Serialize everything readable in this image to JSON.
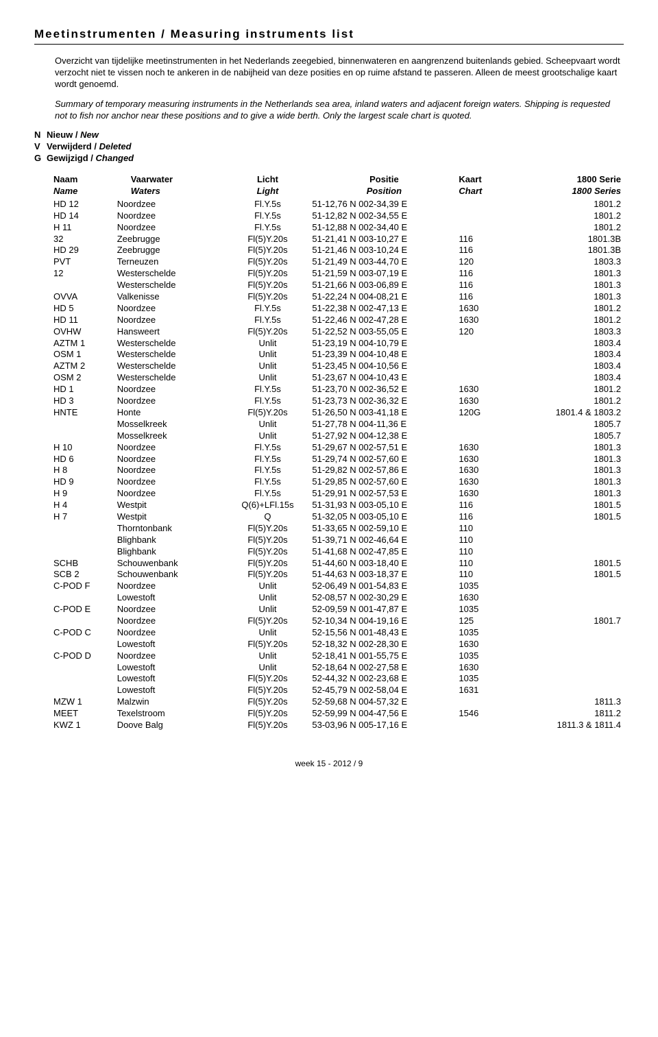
{
  "title": "Meetinstrumenten / Measuring instruments list",
  "intro_nl": "Overzicht van tijdelijke meetinstrumenten in het Nederlands zeegebied, binnenwateren en aangrenzend buitenlands gebied. Scheepvaart wordt verzocht niet te vissen noch te ankeren in de nabijheid van deze posities en op ruime afstand te passeren. Alleen de meest grootschalige kaart wordt genoemd.",
  "intro_en": "Summary of temporary measuring instruments in the Netherlands sea area, inland waters and adjacent foreign waters. Shipping is requested not to fish nor anchor near these positions and to give a wide berth. Only the largest scale chart is quoted.",
  "legend": [
    {
      "code": "N",
      "nl": "Nieuw / ",
      "en": "New"
    },
    {
      "code": "V",
      "nl": "Verwijderd / ",
      "en": "Deleted"
    },
    {
      "code": "G",
      "nl": "Gewijzigd / ",
      "en": "Changed"
    }
  ],
  "headers": {
    "naam": "Naam",
    "naam_en": "Name",
    "vaar": "Vaarwater",
    "vaar_en": "Waters",
    "licht": "Licht",
    "licht_en": "Light",
    "pos": "Positie",
    "pos_en": "Position",
    "kaart": "Kaart",
    "kaart_en": "Chart",
    "serie": "1800 Serie",
    "serie_en": "1800 Series"
  },
  "rows": [
    {
      "naam": "HD 12",
      "vaar": "Noordzee",
      "licht": "Fl.Y.5s",
      "pos": "51-12,76 N   002-34,39 E",
      "kaart": "",
      "serie": "1801.2"
    },
    {
      "naam": "HD 14",
      "vaar": "Noordzee",
      "licht": "Fl.Y.5s",
      "pos": "51-12,82 N   002-34,55 E",
      "kaart": "",
      "serie": "1801.2"
    },
    {
      "naam": "H 11",
      "vaar": "Noordzee",
      "licht": "Fl.Y.5s",
      "pos": "51-12,88 N   002-34,40 E",
      "kaart": "",
      "serie": "1801.2"
    },
    {
      "naam": "32",
      "vaar": "Zeebrugge",
      "licht": "Fl(5)Y.20s",
      "pos": "51-21,41 N   003-10,27 E",
      "kaart": "116",
      "serie": "1801.3B"
    },
    {
      "naam": "HD 29",
      "vaar": "Zeebrugge",
      "licht": "Fl(5)Y.20s",
      "pos": "51-21,46 N   003-10,24 E",
      "kaart": "116",
      "serie": "1801.3B"
    },
    {
      "naam": "PVT",
      "vaar": "Terneuzen",
      "licht": "Fl(5)Y.20s",
      "pos": "51-21,49 N   003-44,70 E",
      "kaart": "120",
      "serie": "1803.3"
    },
    {
      "naam": "12",
      "vaar": "Westerschelde",
      "licht": "Fl(5)Y.20s",
      "pos": "51-21,59 N   003-07,19 E",
      "kaart": "116",
      "serie": "1801.3"
    },
    {
      "naam": "",
      "vaar": "Westerschelde",
      "licht": "Fl(5)Y.20s",
      "pos": "51-21,66 N   003-06,89 E",
      "kaart": "116",
      "serie": "1801.3"
    },
    {
      "naam": "OVVA",
      "vaar": "Valkenisse",
      "licht": "Fl(5)Y.20s",
      "pos": "51-22,24 N   004-08,21 E",
      "kaart": "116",
      "serie": "1801.3"
    },
    {
      "naam": "HD 5",
      "vaar": "Noordzee",
      "licht": "Fl.Y.5s",
      "pos": "51-22,38 N   002-47,13 E",
      "kaart": "1630",
      "serie": "1801.2"
    },
    {
      "naam": "HD 11",
      "vaar": "Noordzee",
      "licht": "Fl.Y.5s",
      "pos": "51-22,46 N   002-47,28 E",
      "kaart": "1630",
      "serie": "1801.2"
    },
    {
      "naam": "OVHW",
      "vaar": "Hansweert",
      "licht": "Fl(5)Y.20s",
      "pos": "51-22,52 N   003-55,05 E",
      "kaart": "120",
      "serie": "1803.3"
    },
    {
      "naam": "AZTM 1",
      "vaar": "Westerschelde",
      "licht": "Unlit",
      "pos": "51-23,19 N   004-10,79 E",
      "kaart": "",
      "serie": "1803.4"
    },
    {
      "naam": "OSM 1",
      "vaar": "Westerschelde",
      "licht": "Unlit",
      "pos": "51-23,39 N   004-10,48 E",
      "kaart": "",
      "serie": "1803.4"
    },
    {
      "naam": "AZTM 2",
      "vaar": "Westerschelde",
      "licht": "Unlit",
      "pos": "51-23,45 N   004-10,56 E",
      "kaart": "",
      "serie": "1803.4"
    },
    {
      "naam": "OSM 2",
      "vaar": "Westerschelde",
      "licht": "Unlit",
      "pos": "51-23,67 N   004-10,43 E",
      "kaart": "",
      "serie": "1803.4"
    },
    {
      "naam": "HD 1",
      "vaar": "Noordzee",
      "licht": "Fl.Y.5s",
      "pos": "51-23,70 N   002-36,52 E",
      "kaart": "1630",
      "serie": "1801.2"
    },
    {
      "naam": "HD 3",
      "vaar": "Noordzee",
      "licht": "Fl.Y.5s",
      "pos": "51-23,73 N   002-36,32 E",
      "kaart": "1630",
      "serie": "1801.2"
    },
    {
      "naam": "HNTE",
      "vaar": "Honte",
      "licht": "Fl(5)Y.20s",
      "pos": "51-26,50 N   003-41,18 E",
      "kaart": "120G",
      "serie": "1801.4 & 1803.2"
    },
    {
      "naam": "",
      "vaar": "Mosselkreek",
      "licht": "Unlit",
      "pos": "51-27,78 N   004-11,36 E",
      "kaart": "",
      "serie": "1805.7"
    },
    {
      "naam": "",
      "vaar": "Mosselkreek",
      "licht": "Unlit",
      "pos": "51-27,92 N   004-12,38 E",
      "kaart": "",
      "serie": "1805.7"
    },
    {
      "naam": "H 10",
      "vaar": "Noordzee",
      "licht": "Fl.Y.5s",
      "pos": "51-29,67 N   002-57,51 E",
      "kaart": "1630",
      "serie": "1801.3"
    },
    {
      "naam": "HD 6",
      "vaar": "Noordzee",
      "licht": "Fl.Y.5s",
      "pos": "51-29,74 N   002-57,60 E",
      "kaart": "1630",
      "serie": "1801.3"
    },
    {
      "naam": "H 8",
      "vaar": "Noordzee",
      "licht": "Fl.Y.5s",
      "pos": "51-29,82 N   002-57,86 E",
      "kaart": "1630",
      "serie": "1801.3"
    },
    {
      "naam": "HD 9",
      "vaar": "Noordzee",
      "licht": "Fl.Y.5s",
      "pos": "51-29,85 N   002-57,60 E",
      "kaart": "1630",
      "serie": "1801.3"
    },
    {
      "naam": "H 9",
      "vaar": "Noordzee",
      "licht": "Fl.Y.5s",
      "pos": "51-29,91 N   002-57,53 E",
      "kaart": "1630",
      "serie": "1801.3"
    },
    {
      "naam": "H 4",
      "vaar": "Westpit",
      "licht": "Q(6)+LFl.15s",
      "pos": "51-31,93 N   003-05,10 E",
      "kaart": "116",
      "serie": "1801.5"
    },
    {
      "naam": "H 7",
      "vaar": "Westpit",
      "licht": "Q",
      "pos": "51-32,05 N   003-05,10 E",
      "kaart": "116",
      "serie": "1801.5"
    },
    {
      "naam": "",
      "vaar": "Thorntonbank",
      "licht": "Fl(5)Y.20s",
      "pos": "51-33,65 N   002-59,10 E",
      "kaart": "110",
      "serie": ""
    },
    {
      "naam": "",
      "vaar": "Blighbank",
      "licht": "Fl(5)Y.20s",
      "pos": "51-39,71 N   002-46,64 E",
      "kaart": "110",
      "serie": ""
    },
    {
      "naam": "",
      "vaar": "Blighbank",
      "licht": "Fl(5)Y.20s",
      "pos": "51-41,68 N   002-47,85 E",
      "kaart": "110",
      "serie": ""
    },
    {
      "naam": "SCHB",
      "vaar": "Schouwenbank",
      "licht": "Fl(5)Y.20s",
      "pos": "51-44,60 N   003-18,40 E",
      "kaart": "110",
      "serie": "1801.5"
    },
    {
      "naam": "SCB 2",
      "vaar": "Schouwenbank",
      "licht": "Fl(5)Y.20s",
      "pos": "51-44,63 N   003-18,37 E",
      "kaart": "110",
      "serie": "1801.5"
    },
    {
      "naam": "C-POD F",
      "vaar": "Noordzee",
      "licht": "Unlit",
      "pos": "52-06,49 N   001-54,83 E",
      "kaart": "1035",
      "serie": ""
    },
    {
      "naam": "",
      "vaar": "Lowestoft",
      "licht": "Unlit",
      "pos": "52-08,57 N   002-30,29 E",
      "kaart": "1630",
      "serie": ""
    },
    {
      "naam": "C-POD E",
      "vaar": "Noordzee",
      "licht": "Unlit",
      "pos": "52-09,59 N   001-47,87 E",
      "kaart": "1035",
      "serie": ""
    },
    {
      "naam": "",
      "vaar": "Noordzee",
      "licht": "Fl(5)Y.20s",
      "pos": "52-10,34 N   004-19,16 E",
      "kaart": "125",
      "serie": "1801.7"
    },
    {
      "naam": "C-POD C",
      "vaar": "Noordzee",
      "licht": "Unlit",
      "pos": "52-15,56 N   001-48,43 E",
      "kaart": "1035",
      "serie": ""
    },
    {
      "naam": "",
      "vaar": "Lowestoft",
      "licht": "Fl(5)Y.20s",
      "pos": "52-18,32 N   002-28,30 E",
      "kaart": "1630",
      "serie": ""
    },
    {
      "naam": "C-POD D",
      "vaar": "Noordzee",
      "licht": "Unlit",
      "pos": "52-18,41 N   001-55,75 E",
      "kaart": "1035",
      "serie": ""
    },
    {
      "naam": "",
      "vaar": "Lowestoft",
      "licht": "Unlit",
      "pos": "52-18,64 N   002-27,58 E",
      "kaart": "1630",
      "serie": ""
    },
    {
      "naam": "",
      "vaar": "Lowestoft",
      "licht": "Fl(5)Y.20s",
      "pos": "52-44,32 N   002-23,68 E",
      "kaart": "1035",
      "serie": ""
    },
    {
      "naam": "",
      "vaar": "Lowestoft",
      "licht": "Fl(5)Y.20s",
      "pos": "52-45,79 N   002-58,04 E",
      "kaart": "1631",
      "serie": ""
    },
    {
      "naam": "MZW 1",
      "vaar": "Malzwin",
      "licht": "Fl(5)Y.20s",
      "pos": "52-59,68 N   004-57,32 E",
      "kaart": "",
      "serie": "1811.3"
    },
    {
      "naam": "MEET",
      "vaar": "Texelstroom",
      "licht": "Fl(5)Y.20s",
      "pos": "52-59,99 N   004-47,56 E",
      "kaart": "1546",
      "serie": "1811.2"
    },
    {
      "naam": "KWZ 1",
      "vaar": "Doove Balg",
      "licht": "Fl(5)Y.20s",
      "pos": "53-03,96 N   005-17,16 E",
      "kaart": "",
      "serie": "1811.3 & 1811.4"
    }
  ],
  "footer": "week 15 - 2012 / 9"
}
